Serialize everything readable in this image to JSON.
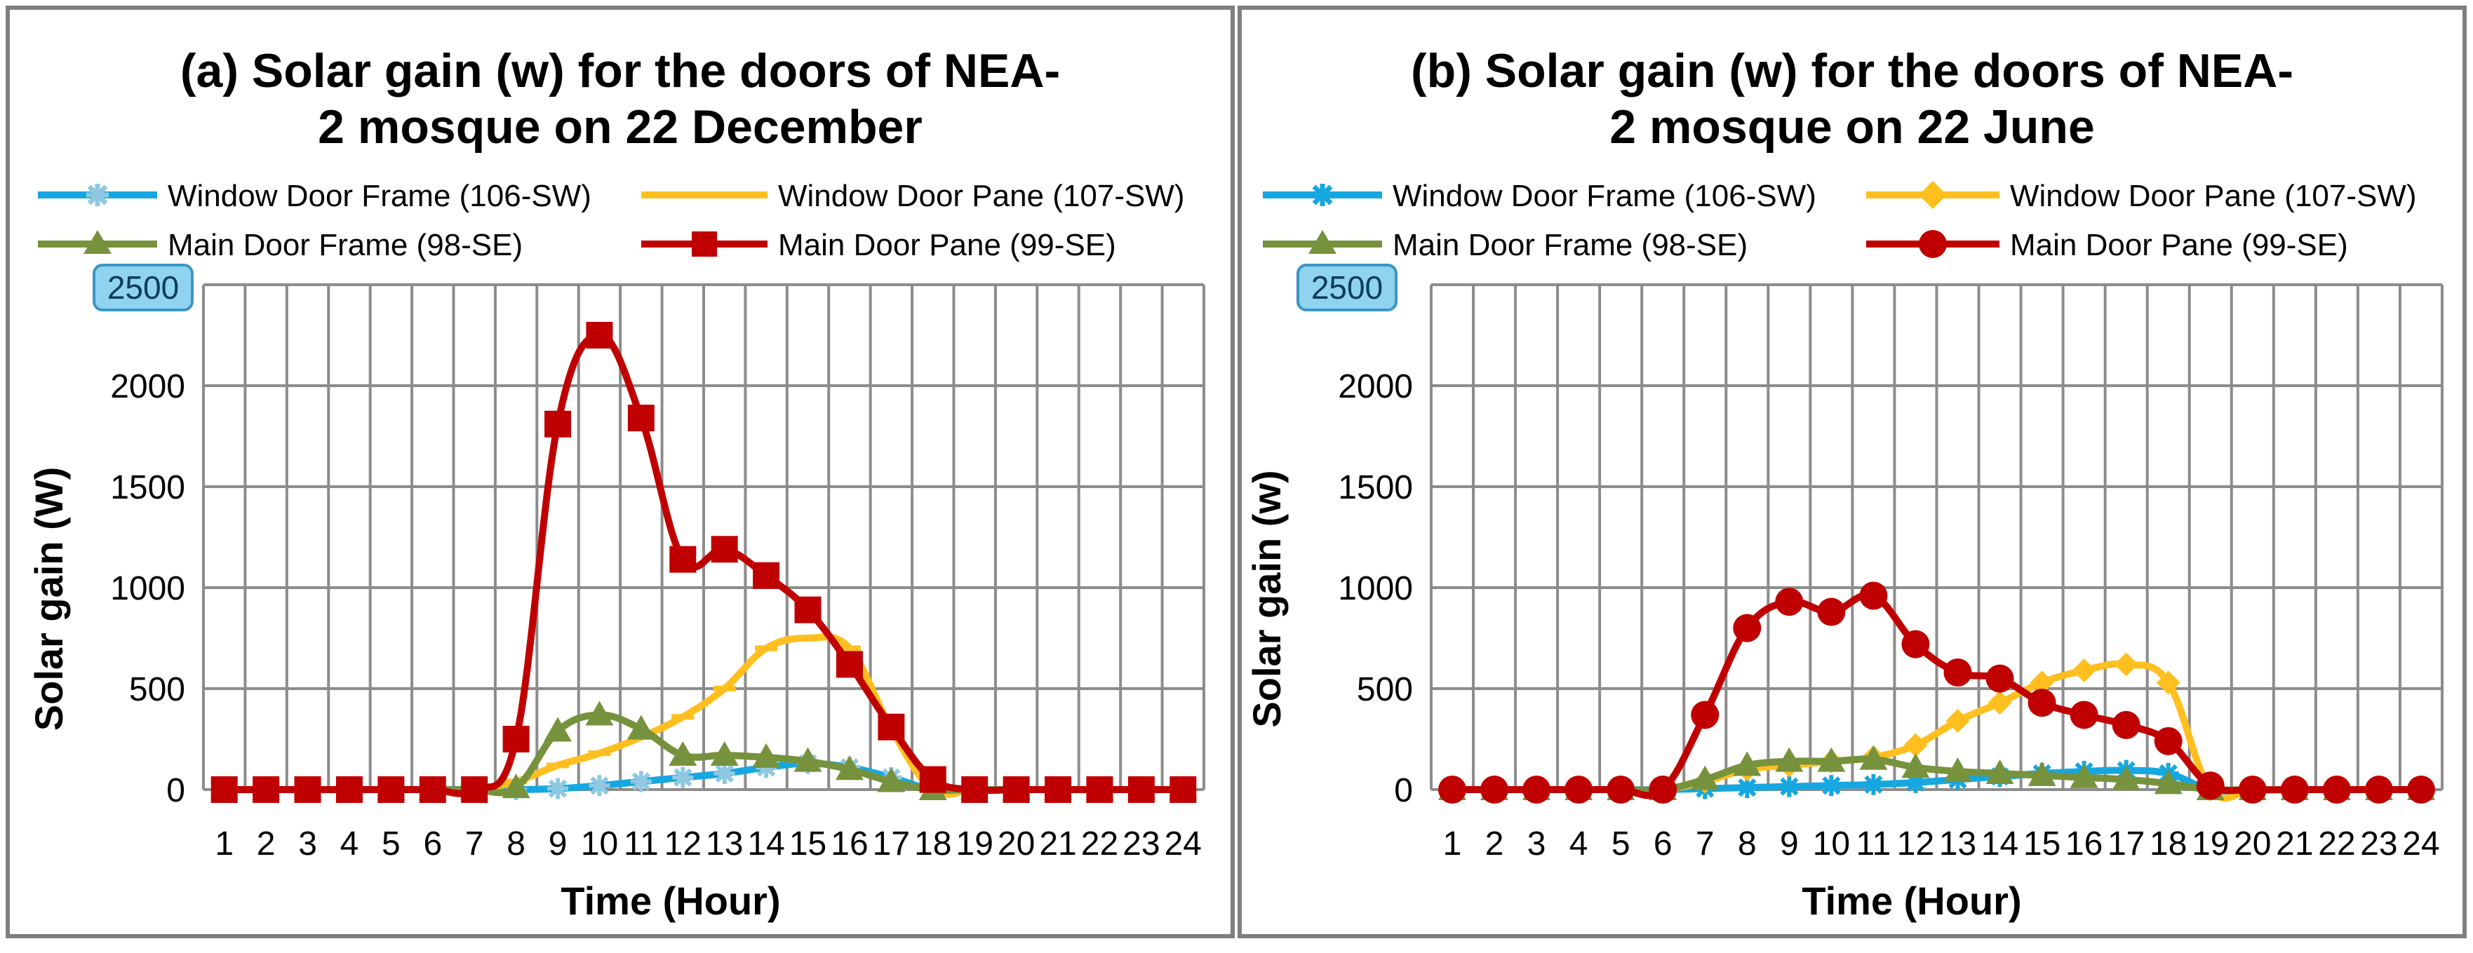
{
  "chart_data": [
    {
      "id": "a",
      "type": "line",
      "title_lines": [
        "(a) Solar gain (w) for the doors of NEA-",
        "2 mosque on 22 December"
      ],
      "xlabel": "Time (Hour)",
      "ylabel": "Solar gain (W)",
      "ylim": [
        0,
        2500
      ],
      "yticks": [
        "0",
        "500",
        "1000",
        "1500",
        "2000",
        "2500"
      ],
      "ytick_values": [
        0,
        500,
        1000,
        1500,
        2000,
        2500
      ],
      "categories": [
        "1",
        "2",
        "3",
        "4",
        "5",
        "6",
        "7",
        "8",
        "9",
        "10",
        "11",
        "12",
        "13",
        "14",
        "15",
        "16",
        "17",
        "18",
        "19",
        "20",
        "21",
        "22",
        "23",
        "24"
      ],
      "grid": true,
      "legend_position": "top",
      "series": [
        {
          "name": "Window Door Frame (106-SW)",
          "color": "#17a7e0",
          "marker_color": "#8fc8e0",
          "marker": "asterisk",
          "values": [
            0,
            0,
            0,
            0,
            0,
            0,
            0,
            0,
            5,
            20,
            40,
            60,
            80,
            110,
            130,
            110,
            60,
            0,
            0,
            0,
            0,
            0,
            0,
            0
          ]
        },
        {
          "name": "Window Door Pane (107-SW)",
          "color": "#ffbf1f",
          "marker_color": "#ffbf1f",
          "marker": "dash",
          "values": [
            0,
            0,
            0,
            0,
            0,
            0,
            0,
            40,
            120,
            180,
            260,
            360,
            500,
            700,
            750,
            700,
            300,
            0,
            0,
            0,
            0,
            0,
            0,
            0
          ]
        },
        {
          "name": "Main Door Frame (98-SE)",
          "color": "#76923c",
          "marker_color": "#76923c",
          "marker": "triangle",
          "values": [
            0,
            0,
            0,
            0,
            0,
            0,
            0,
            10,
            290,
            370,
            300,
            170,
            170,
            160,
            140,
            100,
            40,
            0,
            0,
            0,
            0,
            0,
            0,
            0
          ]
        },
        {
          "name": "Main Door Pane (99-SE)",
          "color": "#c00000",
          "marker_color": "#c00000",
          "marker": "square",
          "values": [
            0,
            0,
            0,
            0,
            0,
            0,
            0,
            250,
            1810,
            2250,
            1840,
            1140,
            1190,
            1060,
            890,
            620,
            310,
            50,
            0,
            0,
            0,
            0,
            0,
            0
          ]
        }
      ]
    },
    {
      "id": "b",
      "type": "line",
      "title_lines": [
        "(b) Solar gain (w) for the doors of NEA-",
        "2 mosque on 22 June"
      ],
      "xlabel": "Time (Hour)",
      "ylabel": "Solar gain (w)",
      "ylim": [
        0,
        2500
      ],
      "yticks": [
        "0",
        "500",
        "1000",
        "1500",
        "2000",
        "2500"
      ],
      "ytick_values": [
        0,
        500,
        1000,
        1500,
        2000,
        2500
      ],
      "categories": [
        "1",
        "2",
        "3",
        "4",
        "5",
        "6",
        "7",
        "8",
        "9",
        "10",
        "11",
        "12",
        "13",
        "14",
        "15",
        "16",
        "17",
        "18",
        "19",
        "20",
        "21",
        "22",
        "23",
        "24"
      ],
      "grid": true,
      "legend_position": "top",
      "series": [
        {
          "name": "Window Door Frame (106-SW)",
          "color": "#17a7e0",
          "marker_color": "#17a7e0",
          "marker": "asterisk",
          "values": [
            0,
            0,
            0,
            0,
            0,
            0,
            5,
            10,
            15,
            20,
            25,
            35,
            50,
            65,
            80,
            90,
            95,
            80,
            0,
            0,
            0,
            0,
            0,
            0
          ]
        },
        {
          "name": "Window Door Pane (107-SW)",
          "color": "#ffbf1f",
          "marker_color": "#ffbf1f",
          "marker": "diamond",
          "values": [
            0,
            0,
            0,
            0,
            0,
            0,
            40,
            100,
            120,
            140,
            160,
            220,
            340,
            430,
            530,
            590,
            620,
            530,
            0,
            0,
            0,
            0,
            0,
            0
          ]
        },
        {
          "name": "Main Door Frame (98-SE)",
          "color": "#76923c",
          "marker_color": "#76923c",
          "marker": "triangle",
          "values": [
            0,
            0,
            0,
            0,
            0,
            0,
            50,
            120,
            140,
            140,
            150,
            110,
            90,
            80,
            70,
            60,
            50,
            30,
            0,
            0,
            0,
            0,
            0,
            0
          ]
        },
        {
          "name": "Main Door Pane (99-SE)",
          "color": "#c00000",
          "marker_color": "#c00000",
          "marker": "circle",
          "values": [
            0,
            0,
            0,
            0,
            0,
            0,
            370,
            800,
            930,
            880,
            960,
            720,
            580,
            550,
            430,
            370,
            320,
            240,
            20,
            0,
            0,
            0,
            0,
            0
          ]
        }
      ]
    }
  ]
}
